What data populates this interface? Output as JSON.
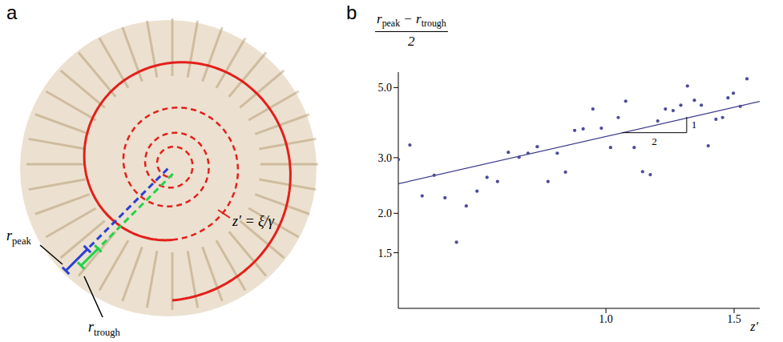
{
  "panel_a": {
    "letter": "a",
    "annotations": [
      [
        {
          "text": "r",
          "sub": "peak"
        }
      ],
      [
        {
          "text": "r",
          "sub": "trough"
        }
      ],
      [
        {
          "text": "z′ = ξ/γ"
        }
      ]
    ]
  },
  "chart_data": {
    "type": "scatter",
    "panel_label": "b",
    "xlabel": [
      {
        "text": "z′"
      }
    ],
    "ylabel": {
      "numerator": [
        {
          "text": "r",
          "sub": "peak"
        },
        {
          "text": " − "
        },
        {
          "text": "r",
          "sub": "trough"
        }
      ],
      "denominator": [
        {
          "text": "2"
        }
      ]
    },
    "log": "y",
    "grid": false,
    "xlim": [
      0.19,
      1.6
    ],
    "xticks": [
      {
        "value": 1,
        "label": "1.0"
      },
      1.5
    ],
    "ylim": [
      1,
      5.6
    ],
    "yticks": [
      1.5,
      {
        "value": 2,
        "label": "2.0"
      },
      {
        "value": 3,
        "label": "3.0"
      },
      {
        "value": 5,
        "label": "5.0"
      }
    ],
    "series": [
      {
        "type": "scatter",
        "color": "#4b4b9c",
        "marker": "circle",
        "x": [
          0.19,
          0.235,
          0.283,
          0.33,
          0.372,
          0.417,
          0.455,
          0.497,
          0.536,
          0.577,
          0.619,
          0.661,
          0.696,
          0.732,
          0.774,
          0.81,
          0.842,
          0.878,
          0.911,
          0.949,
          0.982,
          1.018,
          1.048,
          1.077,
          1.11,
          1.143,
          1.173,
          1.202,
          1.232,
          1.262,
          1.292,
          1.318,
          1.345,
          1.372,
          1.399,
          1.429,
          1.455,
          1.476,
          1.497,
          1.524,
          1.55
        ],
        "values": [
          2.96,
          3.29,
          2.27,
          2.64,
          2.24,
          1.62,
          2.11,
          2.35,
          2.6,
          2.52,
          3.12,
          3.01,
          3.1,
          3.25,
          2.52,
          3.1,
          2.7,
          3.66,
          3.7,
          4.28,
          3.72,
          3.23,
          4.02,
          4.53,
          3.23,
          2.71,
          2.65,
          3.92,
          4.28,
          4.23,
          4.4,
          5.06,
          4.56,
          4.4,
          3.27,
          3.97,
          4.02,
          4.64,
          4.8,
          4.36,
          5.33
        ]
      },
      {
        "type": "line",
        "color": "#3c3c8c",
        "line_style": "solid",
        "x": [
          0.19,
          1.6
        ],
        "values": [
          2.48,
          4.52
        ]
      }
    ],
    "triangle": {
      "x": [
        1.063,
        1.315
      ],
      "y": [
        3.6,
        4.04
      ],
      "run_label": "2",
      "rise_label": "1"
    }
  }
}
